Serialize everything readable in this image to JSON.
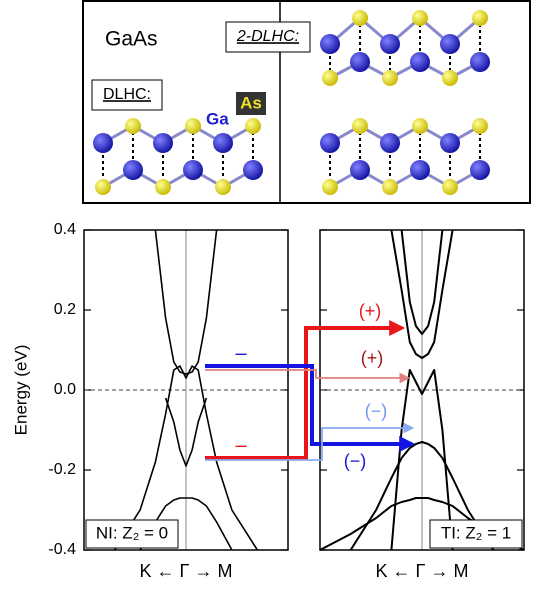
{
  "structure": {
    "title": "GaAs",
    "left_label": "DLHC:",
    "right_label": "2-DLHC:",
    "ga": "Ga",
    "as": "As"
  },
  "annotations": [
    "–",
    "–",
    "(+)",
    "(+)",
    "(−)",
    "(−)"
  ],
  "chart_data": [
    {
      "type": "line",
      "ylabel": "Energy (eV)",
      "xlabel": "K ← Γ → M",
      "panel_label": "NI: Z₂ = 0",
      "xlim": [
        -1,
        1
      ],
      "ylim": [
        -0.4,
        0.4
      ],
      "yticks": [
        -0.4,
        -0.2,
        {
          "value": 0,
          "label": "0.0"
        },
        0.2,
        0.4
      ],
      "hline": 0,
      "vline": 0,
      "color": "#000000",
      "x": [
        -1,
        -0.7,
        -0.45,
        -0.3,
        -0.2,
        -0.12,
        -0.06,
        0,
        0.06,
        0.12,
        0.2,
        0.3,
        0.45,
        0.7,
        1
      ],
      "series": [
        {
          "values": [
            null,
            null,
            null,
            0.4,
            0.18,
            0.07,
            0.045,
            0.04,
            0.045,
            0.07,
            0.18,
            0.4,
            null,
            null,
            null
          ]
        },
        {
          "values": [
            null,
            -0.4,
            -0.3,
            -0.18,
            -0.06,
            0.05,
            0.06,
            0.03,
            0.06,
            0.05,
            -0.06,
            -0.18,
            -0.3,
            -0.4,
            null
          ]
        },
        {
          "values": [
            null,
            null,
            null,
            null,
            -0.02,
            -0.08,
            -0.15,
            -0.19,
            -0.15,
            -0.08,
            -0.02,
            null,
            null,
            null,
            null
          ]
        },
        {
          "values": [
            null,
            null,
            -0.4,
            -0.33,
            -0.29,
            -0.275,
            -0.27,
            -0.27,
            -0.27,
            -0.275,
            -0.29,
            -0.33,
            -0.4,
            null,
            null
          ]
        }
      ]
    },
    {
      "type": "line",
      "xlabel": "K ← Γ → M",
      "panel_label": "TI: Z₂ = 1",
      "xlim": [
        -1,
        1
      ],
      "ylim": [
        -0.4,
        0.4
      ],
      "yticks": [
        -0.4,
        -0.2,
        0,
        0.2,
        0.4
      ],
      "hline": 0,
      "vline": 0,
      "color": "#000000",
      "x": [
        -1,
        -0.7,
        -0.45,
        -0.3,
        -0.2,
        -0.12,
        -0.06,
        0,
        0.06,
        0.12,
        0.2,
        0.3,
        0.45,
        0.7,
        1
      ],
      "series": [
        {
          "values": [
            null,
            null,
            null,
            null,
            0.4,
            0.22,
            0.16,
            0.14,
            0.16,
            0.22,
            0.4,
            null,
            null,
            null,
            null
          ]
        },
        {
          "values": [
            null,
            null,
            null,
            0.4,
            0.25,
            0.12,
            0.09,
            0.08,
            0.09,
            0.12,
            0.25,
            0.4,
            null,
            null,
            null
          ]
        },
        {
          "values": [
            null,
            null,
            null,
            -0.4,
            -0.1,
            0.05,
            0.02,
            -0.01,
            0.02,
            0.05,
            -0.1,
            -0.4,
            null,
            null,
            null
          ]
        },
        {
          "values": [
            null,
            -0.4,
            -0.3,
            -0.22,
            -0.17,
            -0.145,
            -0.135,
            -0.13,
            -0.135,
            -0.145,
            -0.17,
            -0.22,
            -0.3,
            -0.4,
            null
          ]
        },
        {
          "values": [
            -0.4,
            -0.36,
            -0.32,
            -0.29,
            -0.28,
            -0.275,
            -0.27,
            -0.27,
            -0.27,
            -0.275,
            -0.28,
            -0.29,
            -0.32,
            -0.36,
            -0.4
          ]
        }
      ]
    }
  ]
}
